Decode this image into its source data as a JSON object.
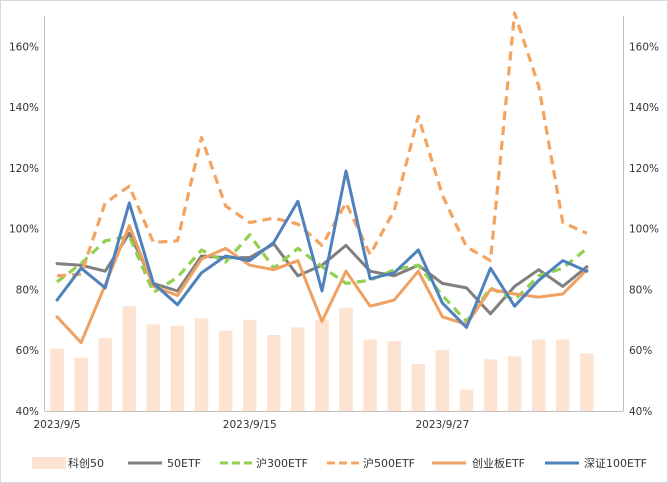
{
  "chart_data": {
    "type": "bar+line",
    "title": "",
    "xlabel": "",
    "ylabel": "",
    "ylim": [
      0.4,
      1.7
    ],
    "y_ticks": [
      "40%",
      "60%",
      "80%",
      "100%",
      "120%",
      "140%",
      "160%"
    ],
    "y_tick_values": [
      0.4,
      0.6,
      0.8,
      1.0,
      1.2,
      1.4,
      1.6
    ],
    "x_tick_labels": [
      {
        "index": 0,
        "label": "2023/9/5"
      },
      {
        "index": 8,
        "label": "2023/9/15"
      },
      {
        "index": 16,
        "label": "2023/9/27"
      }
    ],
    "category_count": 24,
    "bar_series": {
      "name": "科创50",
      "color": "#fce3d2",
      "values": [
        0.605,
        0.575,
        0.64,
        0.745,
        0.685,
        0.68,
        0.705,
        0.665,
        0.7,
        0.65,
        0.675,
        0.7,
        0.74,
        0.635,
        0.63,
        0.555,
        0.6,
        0.47,
        0.57,
        0.58,
        0.635,
        0.635,
        0.59,
        null
      ]
    },
    "series": [
      {
        "name": "50ETF",
        "color": "#7f7f7f",
        "dash": "solid",
        "values": [
          0.885,
          0.88,
          0.86,
          0.985,
          0.82,
          0.795,
          0.91,
          0.905,
          0.905,
          0.95,
          0.845,
          0.88,
          0.945,
          0.86,
          0.845,
          0.88,
          0.82,
          0.805,
          0.72,
          0.81,
          0.865,
          0.81,
          0.875,
          null
        ]
      },
      {
        "name": "沪300ETF",
        "color": "#92d050",
        "dash": "dashed",
        "values": [
          0.825,
          0.885,
          0.96,
          0.975,
          0.79,
          0.84,
          0.93,
          0.89,
          0.98,
          0.87,
          0.935,
          0.875,
          0.82,
          0.83,
          0.865,
          0.88,
          0.78,
          0.695,
          0.805,
          0.765,
          0.845,
          0.87,
          0.935,
          null
        ]
      },
      {
        "name": "沪500ETF",
        "color": "#f4a460",
        "dash": "dashed",
        "values": [
          0.845,
          0.85,
          1.085,
          1.14,
          0.955,
          0.96,
          1.3,
          1.075,
          1.02,
          1.035,
          1.015,
          0.945,
          1.085,
          0.915,
          1.06,
          1.37,
          1.11,
          0.94,
          0.895,
          1.71,
          1.47,
          1.02,
          0.985,
          null
        ]
      },
      {
        "name": "创业板ETF",
        "color": "#f0a060",
        "dash": "solid",
        "values": [
          0.71,
          0.625,
          0.815,
          1.01,
          0.81,
          0.78,
          0.9,
          0.935,
          0.88,
          0.865,
          0.895,
          0.695,
          0.86,
          0.745,
          0.765,
          0.86,
          0.71,
          0.685,
          0.8,
          0.785,
          0.775,
          0.785,
          0.865,
          null
        ]
      },
      {
        "name": "深证100ETF",
        "color": "#4f81bd",
        "dash": "solid",
        "values": [
          0.765,
          0.87,
          0.805,
          1.085,
          0.82,
          0.75,
          0.855,
          0.91,
          0.895,
          0.955,
          1.09,
          0.795,
          1.19,
          0.835,
          0.855,
          0.93,
          0.755,
          0.675,
          0.87,
          0.745,
          0.83,
          0.895,
          0.86,
          null
        ]
      }
    ],
    "legend": {
      "placement": "bottom",
      "items": [
        "科创50",
        "50ETF",
        "沪300ETF",
        "沪500ETF",
        "创业板ETF",
        "深证100ETF"
      ]
    },
    "grid": false,
    "secondary_y_axis": true
  }
}
